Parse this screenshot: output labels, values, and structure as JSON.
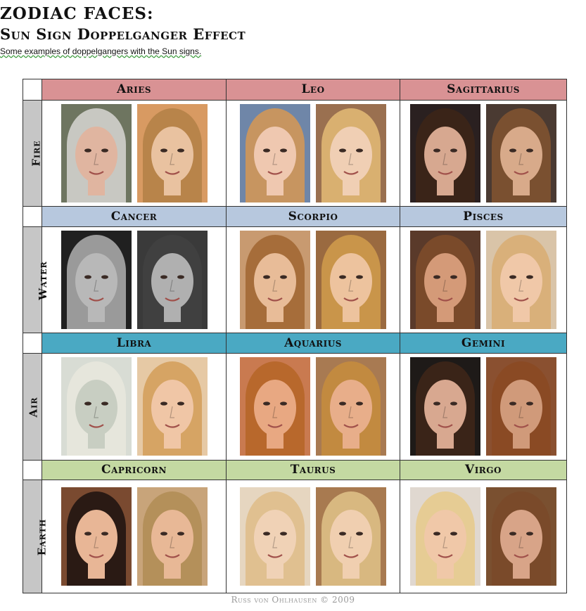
{
  "header": {
    "title": "ZODIAC FACES:",
    "subtitle_main": "Sun Sign Doppelganger Effect",
    "tagline": "Some examples of doppelgangers with the Sun signs."
  },
  "rows": [
    {
      "element": "Fire",
      "color": "#d99294",
      "signs": [
        {
          "name": "Aries",
          "photos": [
            {
              "bg": "#6e7560",
              "hair": "#c8c8c2",
              "skin": "#e0b5a0"
            },
            {
              "bg": "#d89a62",
              "hair": "#b8844a",
              "skin": "#e9c2a0"
            }
          ]
        },
        {
          "name": "Leo",
          "photos": [
            {
              "bg": "#6f86a8",
              "hair": "#c79560",
              "skin": "#efc8b0"
            },
            {
              "bg": "#9a7050",
              "hair": "#d9b070",
              "skin": "#f0cfb4"
            }
          ]
        },
        {
          "name": "Sagittarius",
          "photos": [
            {
              "bg": "#2a2020",
              "hair": "#3a2418",
              "skin": "#d7a890"
            },
            {
              "bg": "#4a3a32",
              "hair": "#7a5030",
              "skin": "#d8aa8a"
            }
          ]
        }
      ]
    },
    {
      "element": "Water",
      "color": "#b7c8de",
      "signs": [
        {
          "name": "Cancer",
          "photos": [
            {
              "bg": "#202020",
              "hair": "#9a9a9a",
              "skin": "#b8b8b8"
            },
            {
              "bg": "#3a3a3a",
              "hair": "#404040",
              "skin": "#b0b0b0"
            }
          ]
        },
        {
          "name": "Scorpio",
          "photos": [
            {
              "bg": "#c89a70",
              "hair": "#a66d3a",
              "skin": "#e8bc98"
            },
            {
              "bg": "#9a6a40",
              "hair": "#c9954a",
              "skin": "#edc39e"
            }
          ]
        },
        {
          "name": "Pisces",
          "photos": [
            {
              "bg": "#5a3a2a",
              "hair": "#7a4a2a",
              "skin": "#d49a78"
            },
            {
              "bg": "#d9c4a8",
              "hair": "#d9b07a",
              "skin": "#f0c8a8"
            }
          ]
        }
      ]
    },
    {
      "element": "Air",
      "color": "#4aa9c3",
      "signs": [
        {
          "name": "Libra",
          "photos": [
            {
              "bg": "#d8dcd4",
              "hair": "#e6e6dc",
              "skin": "#c8cec2"
            },
            {
              "bg": "#e6c9a5",
              "hair": "#d6a464",
              "skin": "#f0c6a6"
            }
          ]
        },
        {
          "name": "Aquarius",
          "photos": [
            {
              "bg": "#c97a50",
              "hair": "#b8682c",
              "skin": "#e8a882"
            },
            {
              "bg": "#a87a52",
              "hair": "#c28a40",
              "skin": "#e8ae8a"
            }
          ]
        },
        {
          "name": "Gemini",
          "photos": [
            {
              "bg": "#1e1a18",
              "hair": "#3a2418",
              "skin": "#d8a890"
            },
            {
              "bg": "#8a5030",
              "hair": "#8a4a24",
              "skin": "#d09a7a"
            }
          ]
        }
      ]
    },
    {
      "element": "Earth",
      "color": "#c4d9a2",
      "signs": [
        {
          "name": "Capricorn",
          "photos": [
            {
              "bg": "#7a4a30",
              "hair": "#2a1a14",
              "skin": "#e8b696"
            },
            {
              "bg": "#c8a47a",
              "hair": "#b4905a",
              "skin": "#e8b896"
            }
          ]
        },
        {
          "name": "Taurus",
          "photos": [
            {
              "bg": "#e6d6c0",
              "hair": "#e0c090",
              "skin": "#f0d2b6"
            },
            {
              "bg": "#a87a50",
              "hair": "#d8b880",
              "skin": "#f0cfb0"
            }
          ]
        },
        {
          "name": "Virgo",
          "photos": [
            {
              "bg": "#e0d8d0",
              "hair": "#e6cc94",
              "skin": "#f0c8a8"
            },
            {
              "bg": "#7a5030",
              "hair": "#7a4a2a",
              "skin": "#d8a488"
            }
          ]
        }
      ]
    }
  ],
  "footer": "Russ von Ohlhausen © 2009"
}
